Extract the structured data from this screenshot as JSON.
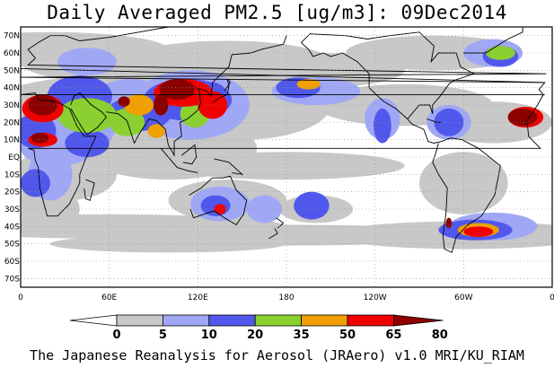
{
  "title": "Daily Averaged PM2.5 [ug/m3]: 09Dec2014",
  "footer": "The Japanese Reanalysis for Aerosol (JRAero) v1.0 MRI/KU_RIAM",
  "map": {
    "projection": "equirectangular",
    "lon_range": [
      0,
      360
    ],
    "lat_range": [
      -75,
      75
    ],
    "lat_labels": [
      {
        "lat": 70,
        "label": "70N"
      },
      {
        "lat": 60,
        "label": "60N"
      },
      {
        "lat": 50,
        "label": "50N"
      },
      {
        "lat": 40,
        "label": "40N"
      },
      {
        "lat": 30,
        "label": "30N"
      },
      {
        "lat": 20,
        "label": "20N"
      },
      {
        "lat": 10,
        "label": "10N"
      },
      {
        "lat": 0,
        "label": "EQ"
      },
      {
        "lat": -10,
        "label": "10S"
      },
      {
        "lat": -20,
        "label": "20S"
      },
      {
        "lat": -30,
        "label": "30S"
      },
      {
        "lat": -40,
        "label": "40S"
      },
      {
        "lat": -50,
        "label": "50S"
      },
      {
        "lat": -60,
        "label": "60S"
      },
      {
        "lat": -70,
        "label": "70S"
      }
    ],
    "lon_labels": [
      {
        "lon": 0,
        "label": "0"
      },
      {
        "lon": 60,
        "label": "60E"
      },
      {
        "lon": 120,
        "label": "120E"
      },
      {
        "lon": 180,
        "label": "180"
      },
      {
        "lon": 240,
        "label": "120W"
      },
      {
        "lon": 300,
        "label": "60W"
      },
      {
        "lon": 360,
        "label": "0"
      }
    ],
    "grid": true
  },
  "colorbar": {
    "levels": [
      "0",
      "5",
      "10",
      "20",
      "35",
      "50",
      "65",
      "80"
    ],
    "colors": [
      "#ffffff",
      "#c8c8c8",
      "#a0a8f5",
      "#5058ec",
      "#8ad030",
      "#f0a000",
      "#f00000",
      "#8c0000"
    ]
  }
}
